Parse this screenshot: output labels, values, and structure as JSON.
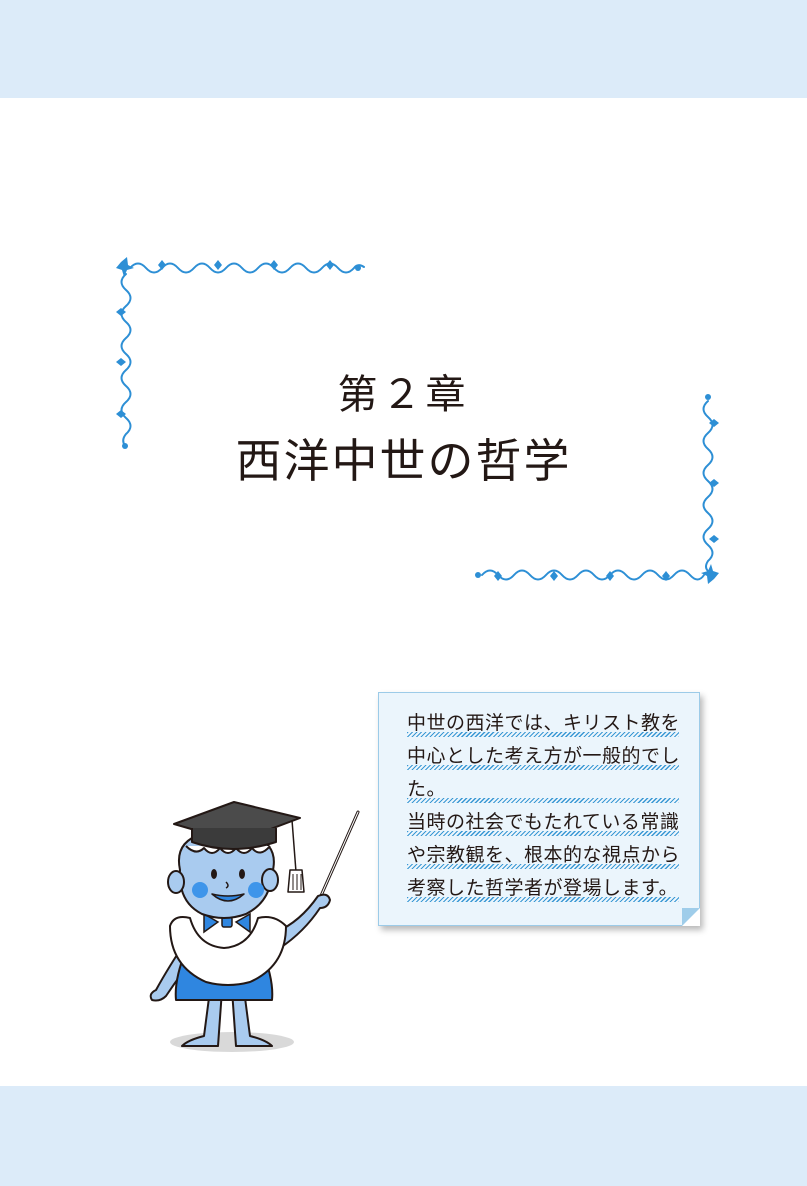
{
  "page": {
    "chapter_number": "第２章",
    "chapter_title": "西洋中世の哲学"
  },
  "note": {
    "lines": [
      "中世の西洋では、キリスト教を",
      "中心とした考え方が一般的でし",
      "た。",
      "当時の社会でもたれている常識",
      "や宗教観を、根本的な視点から",
      "考察した哲学者が登場します。"
    ]
  },
  "colors": {
    "band": "#dcebf9",
    "ornament": "#2d8fd5",
    "note_background": "#ebf5fc",
    "underline": "#3a98d4",
    "mascot_skin": "#a9cbef",
    "mascot_apron": "#2f86e0",
    "cheek": "#3e95ea"
  },
  "icons": {
    "ornament": "scroll-flourish-corner",
    "mascot": "professor-boy-with-mortarboard-and-pointer"
  }
}
